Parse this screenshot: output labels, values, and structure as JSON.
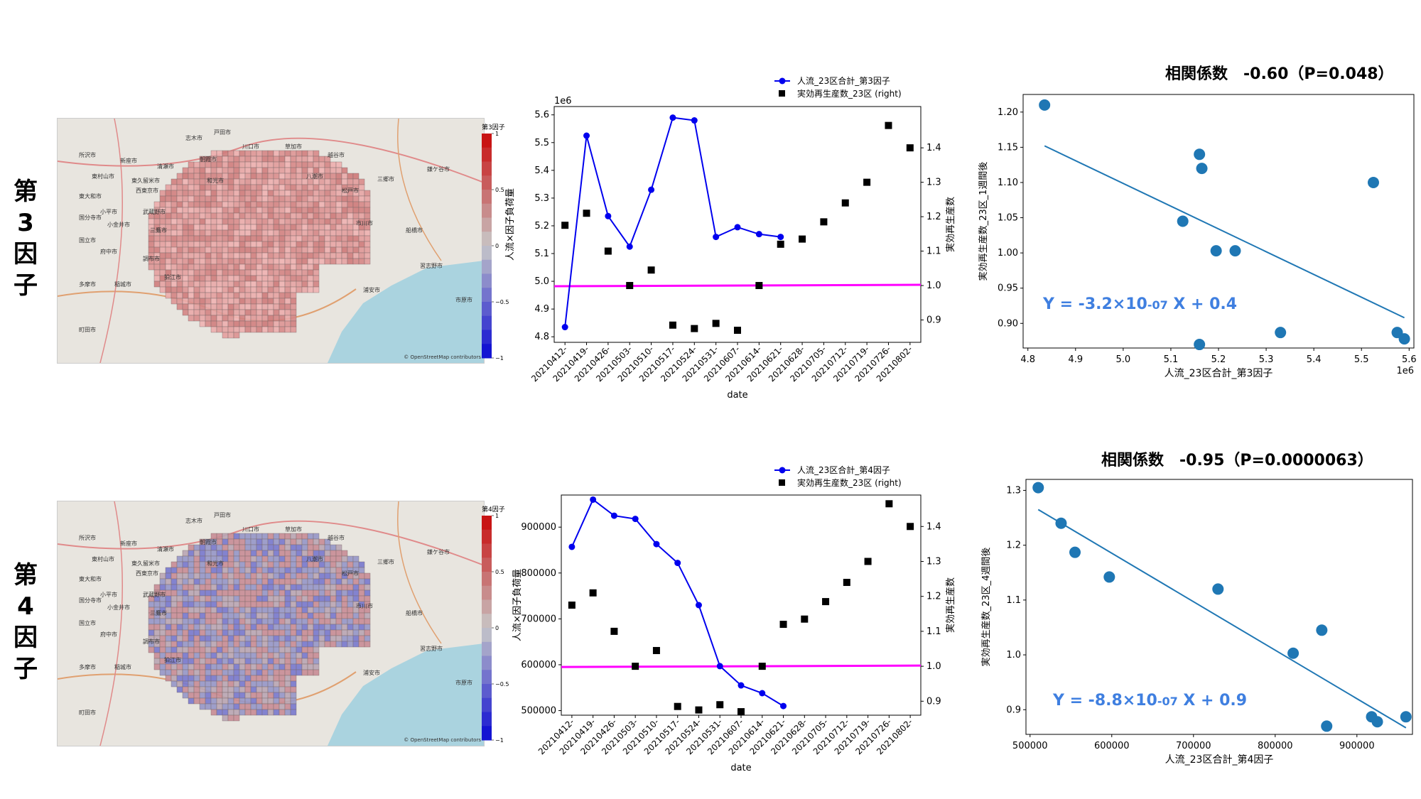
{
  "rows": [
    {
      "label_chars": [
        "第",
        "3",
        "因",
        "子"
      ],
      "colorbar": {
        "title": "第3因子",
        "ticks": [
          "1",
          "0.5",
          "0",
          "−0.5",
          "−1"
        ]
      },
      "map_attribution": "© OpenStreetMap contributors",
      "map_places": [
        "所沢市",
        "新座市",
        "東村山市",
        "東久留米市",
        "清瀬市",
        "東大和市",
        "西東京市",
        "武蔵野市",
        "小平市",
        "国分寺市",
        "小金井市",
        "三鷹市",
        "国立市",
        "府中市",
        "調布市",
        "多摩市",
        "稲城市",
        "狛江市",
        "町田市",
        "戸田市",
        "川口市",
        "草加市",
        "越谷市",
        "八潮市",
        "松戸市",
        "三郷市",
        "鎌ケ谷市",
        "市川市",
        "船橋市",
        "習志野市",
        "浦安市",
        "市原市",
        "志木市",
        "朝霞市",
        "和光市"
      ],
      "timeseries": {
        "type": "line",
        "legend": [
          "人流_23区合計_第3因子",
          "実効再生産数_23区 (right)"
        ],
        "xlabel": "date",
        "ylabel": "人流×因子負荷量",
        "ylabel_right": "実効再生産数",
        "y_offset_label": "1e6",
        "categories": [
          "20210412-",
          "20210419-",
          "20210426-",
          "20210503-",
          "20210510-",
          "20210517-",
          "20210524-",
          "20210531-",
          "20210607-",
          "20210614-",
          "20210621-",
          "20210628-",
          "20210705-",
          "20210712-",
          "20210719-",
          "20210726-",
          "20210802-"
        ],
        "y_left": {
          "min": 4.78,
          "max": 5.63,
          "ticks": [
            "4.8",
            "4.9",
            "5.0",
            "5.1",
            "5.2",
            "5.3",
            "5.4",
            "5.5",
            "5.6"
          ],
          "tick_values": [
            4.8,
            4.9,
            5.0,
            5.1,
            5.2,
            5.3,
            5.4,
            5.5,
            5.6
          ]
        },
        "y_right": {
          "min": 0.835,
          "max": 1.52,
          "ticks": [
            "0.9",
            "1.0",
            "1.1",
            "1.2",
            "1.3",
            "1.4"
          ],
          "tick_values": [
            0.9,
            1.0,
            1.1,
            1.2,
            1.3,
            1.4
          ]
        },
        "series_line": {
          "name": "人流_23区合計_第3因子",
          "color": "#0000ee",
          "values": [
            4.835,
            5.525,
            5.235,
            5.125,
            5.33,
            5.59,
            5.58,
            5.16,
            5.195,
            5.17,
            5.16
          ]
        },
        "series_right": {
          "name": "実効再生産数_23区 (right)",
          "color": "#000000",
          "values": [
            1.175,
            1.21,
            1.1,
            1.0,
            1.045,
            0.885,
            0.875,
            0.89,
            0.87,
            1.0,
            1.12,
            1.135,
            1.185,
            1.24,
            1.3,
            1.465,
            1.4
          ]
        },
        "reference_line": {
          "value_right": 1.0,
          "color": "#ff00ff"
        }
      },
      "scatter": {
        "type": "scatter",
        "title": "相関係数　-0.60（P=0.048）",
        "xlabel": "人流_23区合計_第3因子",
        "ylabel": "実効再生産数_23区_1週間後",
        "x_offset_label": "1e6",
        "x_range": [
          4.79,
          5.61
        ],
        "y_range": [
          0.865,
          1.225
        ],
        "x_ticks": [
          "4.8",
          "4.9",
          "5.0",
          "5.1",
          "5.2",
          "5.3",
          "5.4",
          "5.5",
          "5.6"
        ],
        "x_tick_values": [
          4.8,
          4.9,
          5.0,
          5.1,
          5.2,
          5.3,
          5.4,
          5.5,
          5.6
        ],
        "y_ticks": [
          "0.90",
          "0.95",
          "1.00",
          "1.05",
          "1.10",
          "1.15",
          "1.20"
        ],
        "y_tick_values": [
          0.9,
          0.95,
          1.0,
          1.05,
          1.1,
          1.15,
          1.2
        ],
        "color": "#1f77b4",
        "points": [
          [
            4.835,
            1.21
          ],
          [
            5.16,
            1.14
          ],
          [
            5.165,
            1.12
          ],
          [
            5.125,
            1.045
          ],
          [
            5.195,
            1.003
          ],
          [
            5.235,
            1.003
          ],
          [
            5.33,
            0.887
          ],
          [
            5.16,
            0.87
          ],
          [
            5.525,
            1.1
          ],
          [
            5.575,
            0.887
          ],
          [
            5.59,
            0.878
          ]
        ],
        "fit_line": [
          [
            4.835,
            1.152
          ],
          [
            5.59,
            0.908
          ]
        ],
        "equation_main": "Y = -3.2×10",
        "equation_exp": "-07",
        "equation_tail": " X + 0.4"
      }
    },
    {
      "label_chars": [
        "第",
        "4",
        "因",
        "子"
      ],
      "colorbar": {
        "title": "第4因子",
        "ticks": [
          "1",
          "0.5",
          "0",
          "−0.5",
          "−1"
        ]
      },
      "map_attribution": "© OpenStreetMap contributors",
      "map_places": [
        "所沢市",
        "新座市",
        "東村山市",
        "東久留米市",
        "清瀬市",
        "東大和市",
        "西東京市",
        "武蔵野市",
        "小平市",
        "国分寺市",
        "小金井市",
        "三鷹市",
        "国立市",
        "府中市",
        "調布市",
        "多摩市",
        "稲城市",
        "狛江市",
        "町田市",
        "戸田市",
        "川口市",
        "草加市",
        "越谷市",
        "八潮市",
        "松戸市",
        "三郷市",
        "鎌ケ谷市",
        "市川市",
        "船橋市",
        "習志野市",
        "浦安市",
        "市原市",
        "志木市",
        "朝霞市",
        "和光市"
      ],
      "timeseries": {
        "type": "line",
        "legend": [
          "人流_23区合計_第4因子",
          "実効再生産数_23区 (right)"
        ],
        "xlabel": "date",
        "ylabel": "人流×因子負荷量",
        "ylabel_right": "実効再生産数",
        "y_offset_label": "",
        "categories": [
          "20210412-",
          "20210419-",
          "20210426-",
          "20210503-",
          "20210510-",
          "20210517-",
          "20210524-",
          "20210531-",
          "20210607-",
          "20210614-",
          "20210621-",
          "20210628-",
          "20210705-",
          "20210712-",
          "20210719-",
          "20210726-",
          "20210802-"
        ],
        "y_left": {
          "min": 490000,
          "max": 970000,
          "ticks": [
            "500000",
            "600000",
            "700000",
            "800000",
            "900000"
          ],
          "tick_values": [
            500000,
            600000,
            700000,
            800000,
            900000
          ]
        },
        "y_right": {
          "min": 0.86,
          "max": 1.49,
          "ticks": [
            "0.9",
            "1.0",
            "1.1",
            "1.2",
            "1.3",
            "1.4"
          ],
          "tick_values": [
            0.9,
            1.0,
            1.1,
            1.2,
            1.3,
            1.4
          ]
        },
        "series_line": {
          "name": "人流_23区合計_第4因子",
          "color": "#0000ee",
          "values": [
            857000,
            960000,
            925000,
            918000,
            863000,
            822000,
            730000,
            597000,
            555000,
            538000,
            510000
          ]
        },
        "series_right": {
          "name": "実効再生産数_23区 (right)",
          "color": "#000000",
          "values": [
            1.175,
            1.21,
            1.1,
            1.0,
            1.045,
            0.885,
            0.875,
            0.89,
            0.87,
            1.0,
            1.12,
            1.135,
            1.185,
            1.24,
            1.3,
            1.465,
            1.4
          ]
        },
        "reference_line": {
          "value_right": 1.0,
          "color": "#ff00ff"
        }
      },
      "scatter": {
        "type": "scatter",
        "title": "相関係数　-0.95（P=0.0000063）",
        "xlabel": "人流_23区合計_第4因子",
        "ylabel": "実効再生産数_23区_4週間後",
        "x_offset_label": "",
        "x_range": [
          495000,
          968000
        ],
        "y_range": [
          0.855,
          1.32
        ],
        "x_ticks": [
          "500000",
          "600000",
          "700000",
          "800000",
          "900000"
        ],
        "x_tick_values": [
          500000,
          600000,
          700000,
          800000,
          900000
        ],
        "y_ticks": [
          "0.9",
          "1.0",
          "1.1",
          "1.2",
          "1.3"
        ],
        "y_tick_values": [
          0.9,
          1.0,
          1.1,
          1.2,
          1.3
        ],
        "color": "#1f77b4",
        "points": [
          [
            510000,
            1.305
          ],
          [
            538000,
            1.24
          ],
          [
            555000,
            1.187
          ],
          [
            597000,
            1.142
          ],
          [
            730000,
            1.12
          ],
          [
            822000,
            1.003
          ],
          [
            857000,
            1.045
          ],
          [
            863000,
            0.87
          ],
          [
            918000,
            0.887
          ],
          [
            925000,
            0.878
          ],
          [
            960000,
            0.887
          ]
        ],
        "fit_line": [
          [
            510000,
            1.265
          ],
          [
            960000,
            0.867
          ]
        ],
        "equation_main": "Y = -8.8×10",
        "equation_exp": "-07",
        "equation_tail": " X + 0.9"
      }
    }
  ]
}
